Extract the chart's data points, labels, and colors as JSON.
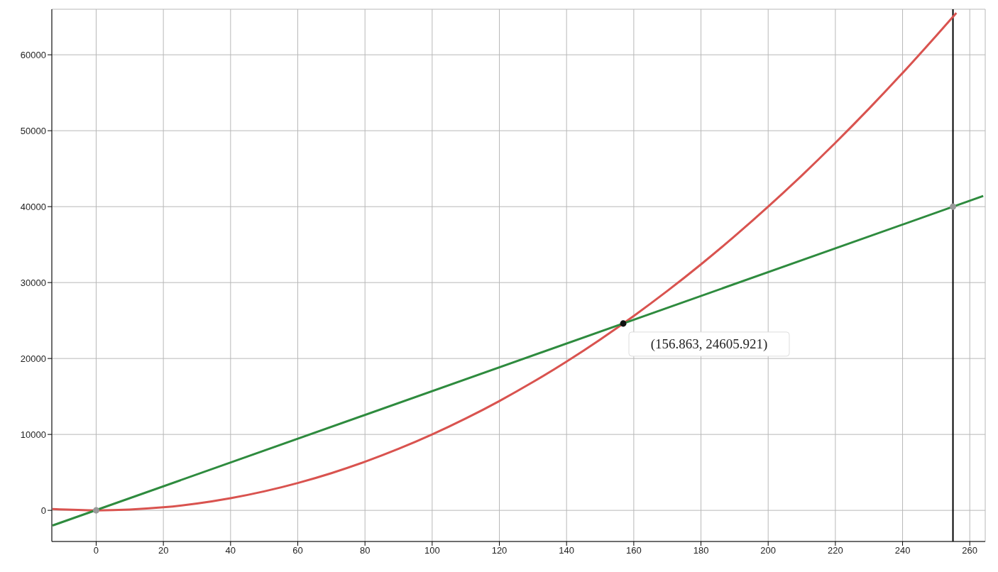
{
  "chart_data": {
    "type": "line",
    "xlim": [
      -13.2,
      264.6
    ],
    "ylim": [
      -4100,
      66000
    ],
    "xticks": [
      0,
      20,
      40,
      60,
      80,
      100,
      120,
      140,
      160,
      180,
      200,
      220,
      240,
      260
    ],
    "yticks": [
      0,
      10000,
      20000,
      30000,
      40000,
      50000,
      60000
    ],
    "grid": true,
    "legend": false,
    "marker": "none",
    "line_style": "solid",
    "series": [
      {
        "color": "#d9534f",
        "x": [
          -13,
          0,
          10,
          20,
          30,
          40,
          50,
          60,
          70,
          80,
          90,
          100,
          110,
          120,
          130,
          140,
          150,
          160,
          170,
          180,
          190,
          200,
          210,
          220,
          230,
          240,
          250,
          256
        ],
        "values": [
          170,
          0,
          100,
          400,
          900,
          1600,
          2500,
          3600,
          4900,
          6400,
          8100,
          10000,
          12100,
          14400,
          16900,
          19600,
          22500,
          25600,
          28900,
          32400,
          36100,
          40000,
          44100,
          48400,
          52900,
          57600,
          62500,
          65500
        ]
      },
      {
        "color": "#2e8b3e",
        "x": [
          -13,
          264
        ],
        "values": [
          -2000,
          41400
        ]
      },
      {
        "type": "scatter",
        "marker": "circle",
        "color": "#999999",
        "x": [
          0,
          255
        ],
        "values": [
          0,
          40000
        ]
      },
      {
        "type": "scatter",
        "marker": "circle",
        "color": "#111111",
        "x": [
          156.863
        ],
        "values": [
          24605.921
        ]
      }
    ],
    "ref_lines": [
      {
        "axis": "x",
        "value": 255,
        "color": "#000000"
      }
    ],
    "annotations": [
      {
        "text": "(156.863, 24605.921)",
        "x": 156.863,
        "y": 24605.921
      }
    ]
  }
}
